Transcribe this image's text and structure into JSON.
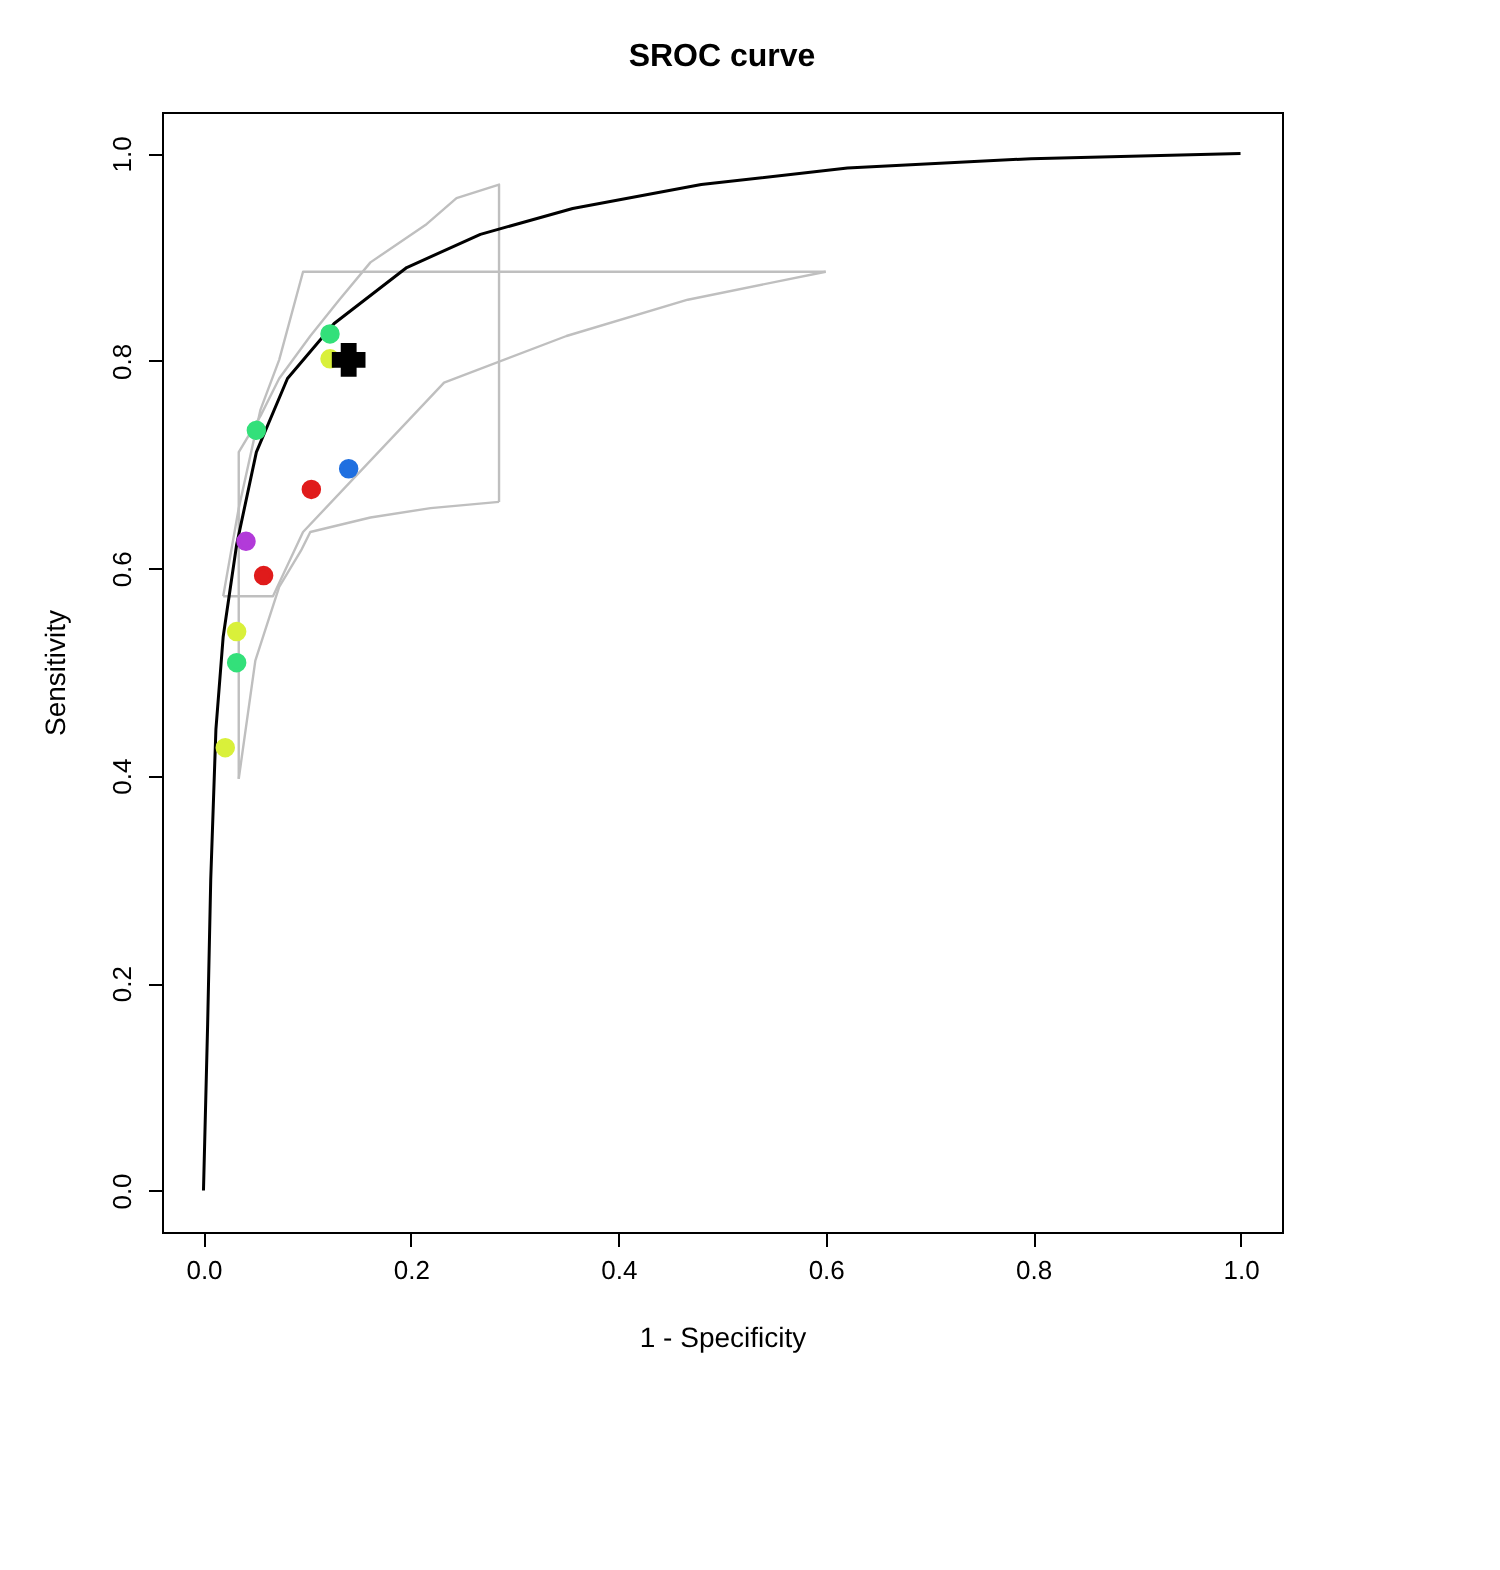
{
  "chart_data": {
    "type": "scatter",
    "title": "SROC curve",
    "xlabel": "1 - Specificity",
    "ylabel": "Sensitivity",
    "xlim": [
      -0.04,
      1.04
    ],
    "ylim": [
      -0.04,
      1.04
    ],
    "xticks": [
      {
        "value": 0,
        "label": "0.0"
      },
      {
        "value": 0.2,
        "label": "0.2"
      },
      {
        "value": 0.4,
        "label": "0.4"
      },
      {
        "value": 0.6,
        "label": "0.6"
      },
      {
        "value": 0.8,
        "label": "0.8"
      },
      {
        "value": 1,
        "label": "1.0"
      }
    ],
    "yticks": [
      {
        "value": 0,
        "label": "0.0"
      },
      {
        "value": 0.2,
        "label": "0.2"
      },
      {
        "value": 0.4,
        "label": "0.4"
      },
      {
        "value": 0.6,
        "label": "0.6"
      },
      {
        "value": 0.8,
        "label": "0.8"
      },
      {
        "value": 1,
        "label": "1.0"
      }
    ],
    "grid": false,
    "legend": false,
    "series": [
      {
        "type": "line",
        "color": "#bfbfbf",
        "x": [
          0.034,
          0.034,
          0.055,
          0.073,
          0.103,
          0.131,
          0.161,
          0.214,
          0.244,
          0.285,
          0.285
        ],
        "values": [
          0.397,
          0.712,
          0.747,
          0.783,
          0.824,
          0.859,
          0.895,
          0.931,
          0.957,
          0.97,
          0.664
        ]
      },
      {
        "type": "line",
        "color": "#bfbfbf",
        "x": [
          0.034,
          0.05,
          0.073,
          0.094,
          0.103,
          0.161,
          0.219,
          0.285
        ],
        "values": [
          0.397,
          0.511,
          0.582,
          0.617,
          0.635,
          0.649,
          0.658,
          0.664
        ]
      },
      {
        "type": "line",
        "color": "#bfbfbf",
        "x": [
          0.019,
          0.034,
          0.055,
          0.073,
          0.096,
          0.6
        ],
        "values": [
          0.573,
          0.658,
          0.753,
          0.801,
          0.886,
          0.886
        ]
      },
      {
        "type": "line",
        "color": "#bfbfbf",
        "x": [
          0.019,
          0.067,
          0.096,
          0.232,
          0.35,
          0.467,
          0.6
        ],
        "values": [
          0.573,
          0.573,
          0.635,
          0.779,
          0.824,
          0.859,
          0.886
        ]
      },
      {
        "type": "line",
        "color": "#000000",
        "x": [
          0,
          0.004,
          0.007,
          0.012,
          0.019,
          0.032,
          0.051,
          0.081,
          0.126,
          0.196,
          0.267,
          0.356,
          0.48,
          0.621,
          0.798,
          1.0
        ],
        "values": [
          0,
          0.16,
          0.3,
          0.445,
          0.534,
          0.623,
          0.712,
          0.783,
          0.836,
          0.89,
          0.922,
          0.947,
          0.97,
          0.986,
          0.995,
          1.0
        ]
      },
      {
        "marker": "circle",
        "x": [
          0.122,
          0.122,
          0.051,
          0.14,
          0.104,
          0.041,
          0.058,
          0.032,
          0.032,
          0.021
        ],
        "values": [
          0.826,
          0.802,
          0.733,
          0.696,
          0.676,
          0.626,
          0.593,
          0.539,
          0.509,
          0.427
        ],
        "colors": [
          "#33e07a",
          "#d9f03a",
          "#33e07a",
          "#1f6fe0",
          "#e01b1b",
          "#b23ad9",
          "#e01b1b",
          "#d9f03a",
          "#33e07a",
          "#d9f03a"
        ]
      },
      {
        "marker": "cross",
        "color": "#000000",
        "x": [
          0.14
        ],
        "values": [
          0.801
        ]
      }
    ]
  }
}
